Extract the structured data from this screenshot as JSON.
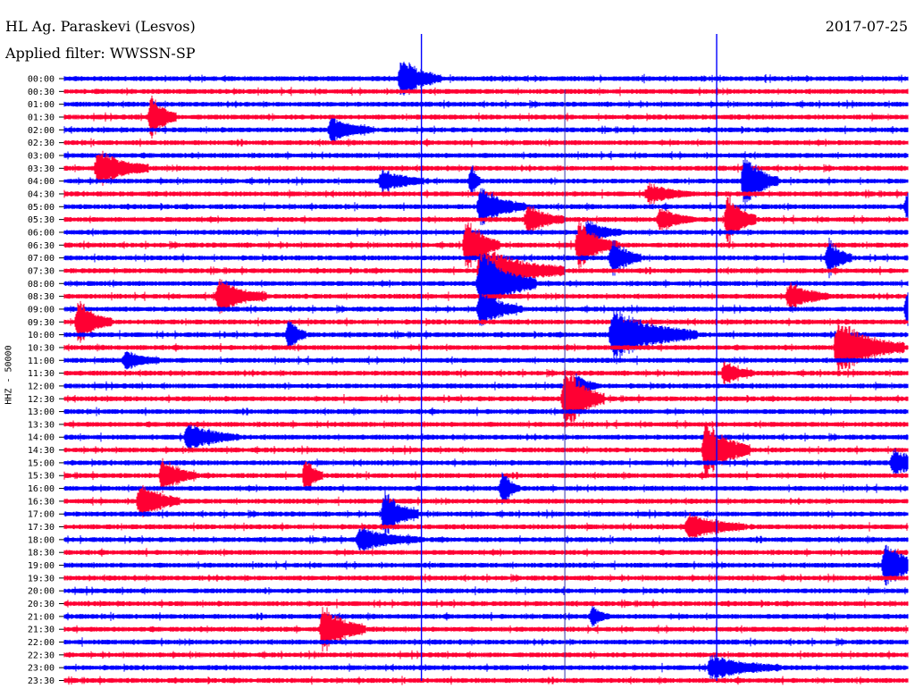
{
  "header": {
    "title": "HL Ag. Paraskevi (Lesvos)",
    "date": "2017-07-25",
    "filter_label": "Applied filter: WWSSN-SP"
  },
  "chart_data": {
    "type": "helicorder",
    "title": "HL Ag. Paraskevi (Lesvos)",
    "ylabel": "HHZ - 50000",
    "xlabel": "",
    "colors": {
      "even": "#0000ff",
      "odd": "#ff0033"
    },
    "tick_labels": [
      "00:00",
      "00:30",
      "01:00",
      "01:30",
      "02:00",
      "02:30",
      "03:00",
      "03:30",
      "04:00",
      "04:30",
      "05:00",
      "05:30",
      "06:00",
      "06:30",
      "07:00",
      "07:30",
      "08:00",
      "08:30",
      "09:00",
      "09:30",
      "10:00",
      "10:30",
      "11:00",
      "11:30",
      "12:00",
      "12:30",
      "13:00",
      "13:30",
      "14:00",
      "14:30",
      "15:00",
      "15:30",
      "16:00",
      "16:30",
      "17:00",
      "17:30",
      "18:00",
      "18:30",
      "19:00",
      "19:30",
      "20:00",
      "20:30",
      "21:00",
      "21:30",
      "22:00",
      "22:30",
      "23:00",
      "23:30"
    ],
    "x_range_minutes": [
      0,
      30
    ],
    "events": [
      {
        "row": 0,
        "minute": 12.0,
        "amp": 1.1,
        "len": 1.4
      },
      {
        "row": 3,
        "minute": 3.1,
        "amp": 1.2,
        "len": 0.9
      },
      {
        "row": 4,
        "minute": 9.5,
        "amp": 0.6,
        "len": 1.5
      },
      {
        "row": 7,
        "minute": 1.2,
        "amp": 1.0,
        "len": 1.8
      },
      {
        "row": 8,
        "minute": 11.3,
        "amp": 0.6,
        "len": 1.5
      },
      {
        "row": 8,
        "minute": 14.5,
        "amp": 0.9,
        "len": 0.3
      },
      {
        "row": 8,
        "minute": 24.2,
        "amp": 1.5,
        "len": 1.2
      },
      {
        "row": 9,
        "minute": 20.8,
        "amp": 0.5,
        "len": 1.5
      },
      {
        "row": 10,
        "minute": 14.8,
        "amp": 1.0,
        "len": 1.6
      },
      {
        "row": 10,
        "minute": 30.0,
        "amp": 1.0,
        "len": 1.0
      },
      {
        "row": 11,
        "minute": 16.5,
        "amp": 0.8,
        "len": 1.3
      },
      {
        "row": 11,
        "minute": 21.2,
        "amp": 0.6,
        "len": 1.2
      },
      {
        "row": 11,
        "minute": 23.6,
        "amp": 1.4,
        "len": 1.0
      },
      {
        "row": 12,
        "minute": 18.6,
        "amp": 0.6,
        "len": 1.2
      },
      {
        "row": 13,
        "minute": 14.3,
        "amp": 1.4,
        "len": 1.2
      },
      {
        "row": 13,
        "minute": 18.3,
        "amp": 1.2,
        "len": 1.4
      },
      {
        "row": 14,
        "minute": 19.5,
        "amp": 1.0,
        "len": 1.0
      },
      {
        "row": 14,
        "minute": 27.2,
        "amp": 1.0,
        "len": 0.8
      },
      {
        "row": 15,
        "minute": 14.8,
        "amp": 1.3,
        "len": 3.0
      },
      {
        "row": 16,
        "minute": 14.8,
        "amp": 1.8,
        "len": 2.0
      },
      {
        "row": 17,
        "minute": 5.5,
        "amp": 0.9,
        "len": 1.7
      },
      {
        "row": 17,
        "minute": 25.8,
        "amp": 0.7,
        "len": 1.4
      },
      {
        "row": 18,
        "minute": 14.8,
        "amp": 0.9,
        "len": 1.5
      },
      {
        "row": 18,
        "minute": 30.0,
        "amp": 1.0,
        "len": 1.2
      },
      {
        "row": 19,
        "minute": 0.5,
        "amp": 1.2,
        "len": 1.2
      },
      {
        "row": 20,
        "minute": 8.0,
        "amp": 0.9,
        "len": 0.6
      },
      {
        "row": 20,
        "minute": 19.5,
        "amp": 1.4,
        "len": 3.0
      },
      {
        "row": 21,
        "minute": 27.5,
        "amp": 1.5,
        "len": 2.4
      },
      {
        "row": 22,
        "minute": 2.2,
        "amp": 0.5,
        "len": 1.2
      },
      {
        "row": 23,
        "minute": 23.5,
        "amp": 0.6,
        "len": 1.0
      },
      {
        "row": 24,
        "minute": 18.2,
        "amp": 0.6,
        "len": 0.8
      },
      {
        "row": 25,
        "minute": 17.8,
        "amp": 1.8,
        "len": 1.4
      },
      {
        "row": 28,
        "minute": 4.4,
        "amp": 0.7,
        "len": 1.8
      },
      {
        "row": 29,
        "minute": 22.8,
        "amp": 1.6,
        "len": 1.6
      },
      {
        "row": 30,
        "minute": 29.5,
        "amp": 0.7,
        "len": 1.5
      },
      {
        "row": 31,
        "minute": 3.5,
        "amp": 0.9,
        "len": 1.2
      },
      {
        "row": 31,
        "minute": 8.6,
        "amp": 1.0,
        "len": 0.6
      },
      {
        "row": 32,
        "minute": 15.6,
        "amp": 0.9,
        "len": 0.6
      },
      {
        "row": 33,
        "minute": 2.7,
        "amp": 1.0,
        "len": 1.4
      },
      {
        "row": 34,
        "minute": 11.4,
        "amp": 1.2,
        "len": 1.2
      },
      {
        "row": 35,
        "minute": 22.2,
        "amp": 0.7,
        "len": 2.0
      },
      {
        "row": 36,
        "minute": 10.5,
        "amp": 0.6,
        "len": 2.2
      },
      {
        "row": 38,
        "minute": 29.2,
        "amp": 1.2,
        "len": 1.5
      },
      {
        "row": 42,
        "minute": 18.8,
        "amp": 0.5,
        "len": 0.6
      },
      {
        "row": 43,
        "minute": 9.2,
        "amp": 1.3,
        "len": 1.5
      },
      {
        "row": 46,
        "minute": 23.0,
        "amp": 0.6,
        "len": 2.5
      }
    ],
    "vertical_marks_minutes": [
      12.7,
      17.8,
      23.2
    ]
  }
}
